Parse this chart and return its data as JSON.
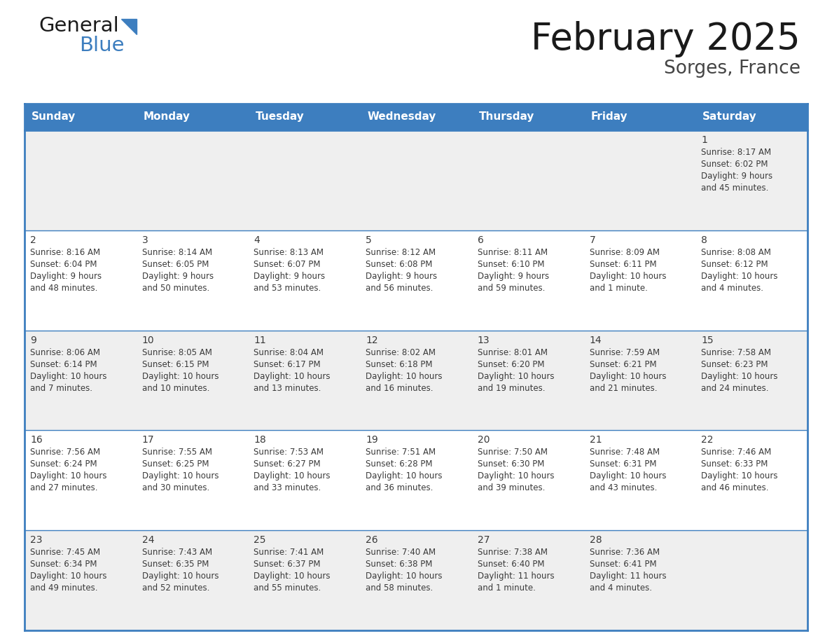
{
  "title": "February 2025",
  "subtitle": "Sorges, France",
  "header_bg": "#3D7EBF",
  "header_text_color": "#FFFFFF",
  "border_color": "#3D7EBF",
  "day_headers": [
    "Sunday",
    "Monday",
    "Tuesday",
    "Wednesday",
    "Thursday",
    "Friday",
    "Saturday"
  ],
  "row0_bg": "#EFEFEF",
  "row1_bg": "#FFFFFF",
  "days": [
    {
      "day": 1,
      "col": 6,
      "row": 0,
      "sunrise": "8:17 AM",
      "sunset": "6:02 PM",
      "daylight_line1": "Daylight: 9 hours",
      "daylight_line2": "and 45 minutes."
    },
    {
      "day": 2,
      "col": 0,
      "row": 1,
      "sunrise": "8:16 AM",
      "sunset": "6:04 PM",
      "daylight_line1": "Daylight: 9 hours",
      "daylight_line2": "and 48 minutes."
    },
    {
      "day": 3,
      "col": 1,
      "row": 1,
      "sunrise": "8:14 AM",
      "sunset": "6:05 PM",
      "daylight_line1": "Daylight: 9 hours",
      "daylight_line2": "and 50 minutes."
    },
    {
      "day": 4,
      "col": 2,
      "row": 1,
      "sunrise": "8:13 AM",
      "sunset": "6:07 PM",
      "daylight_line1": "Daylight: 9 hours",
      "daylight_line2": "and 53 minutes."
    },
    {
      "day": 5,
      "col": 3,
      "row": 1,
      "sunrise": "8:12 AM",
      "sunset": "6:08 PM",
      "daylight_line1": "Daylight: 9 hours",
      "daylight_line2": "and 56 minutes."
    },
    {
      "day": 6,
      "col": 4,
      "row": 1,
      "sunrise": "8:11 AM",
      "sunset": "6:10 PM",
      "daylight_line1": "Daylight: 9 hours",
      "daylight_line2": "and 59 minutes."
    },
    {
      "day": 7,
      "col": 5,
      "row": 1,
      "sunrise": "8:09 AM",
      "sunset": "6:11 PM",
      "daylight_line1": "Daylight: 10 hours",
      "daylight_line2": "and 1 minute."
    },
    {
      "day": 8,
      "col": 6,
      "row": 1,
      "sunrise": "8:08 AM",
      "sunset": "6:12 PM",
      "daylight_line1": "Daylight: 10 hours",
      "daylight_line2": "and 4 minutes."
    },
    {
      "day": 9,
      "col": 0,
      "row": 2,
      "sunrise": "8:06 AM",
      "sunset": "6:14 PM",
      "daylight_line1": "Daylight: 10 hours",
      "daylight_line2": "and 7 minutes."
    },
    {
      "day": 10,
      "col": 1,
      "row": 2,
      "sunrise": "8:05 AM",
      "sunset": "6:15 PM",
      "daylight_line1": "Daylight: 10 hours",
      "daylight_line2": "and 10 minutes."
    },
    {
      "day": 11,
      "col": 2,
      "row": 2,
      "sunrise": "8:04 AM",
      "sunset": "6:17 PM",
      "daylight_line1": "Daylight: 10 hours",
      "daylight_line2": "and 13 minutes."
    },
    {
      "day": 12,
      "col": 3,
      "row": 2,
      "sunrise": "8:02 AM",
      "sunset": "6:18 PM",
      "daylight_line1": "Daylight: 10 hours",
      "daylight_line2": "and 16 minutes."
    },
    {
      "day": 13,
      "col": 4,
      "row": 2,
      "sunrise": "8:01 AM",
      "sunset": "6:20 PM",
      "daylight_line1": "Daylight: 10 hours",
      "daylight_line2": "and 19 minutes."
    },
    {
      "day": 14,
      "col": 5,
      "row": 2,
      "sunrise": "7:59 AM",
      "sunset": "6:21 PM",
      "daylight_line1": "Daylight: 10 hours",
      "daylight_line2": "and 21 minutes."
    },
    {
      "day": 15,
      "col": 6,
      "row": 2,
      "sunrise": "7:58 AM",
      "sunset": "6:23 PM",
      "daylight_line1": "Daylight: 10 hours",
      "daylight_line2": "and 24 minutes."
    },
    {
      "day": 16,
      "col": 0,
      "row": 3,
      "sunrise": "7:56 AM",
      "sunset": "6:24 PM",
      "daylight_line1": "Daylight: 10 hours",
      "daylight_line2": "and 27 minutes."
    },
    {
      "day": 17,
      "col": 1,
      "row": 3,
      "sunrise": "7:55 AM",
      "sunset": "6:25 PM",
      "daylight_line1": "Daylight: 10 hours",
      "daylight_line2": "and 30 minutes."
    },
    {
      "day": 18,
      "col": 2,
      "row": 3,
      "sunrise": "7:53 AM",
      "sunset": "6:27 PM",
      "daylight_line1": "Daylight: 10 hours",
      "daylight_line2": "and 33 minutes."
    },
    {
      "day": 19,
      "col": 3,
      "row": 3,
      "sunrise": "7:51 AM",
      "sunset": "6:28 PM",
      "daylight_line1": "Daylight: 10 hours",
      "daylight_line2": "and 36 minutes."
    },
    {
      "day": 20,
      "col": 4,
      "row": 3,
      "sunrise": "7:50 AM",
      "sunset": "6:30 PM",
      "daylight_line1": "Daylight: 10 hours",
      "daylight_line2": "and 39 minutes."
    },
    {
      "day": 21,
      "col": 5,
      "row": 3,
      "sunrise": "7:48 AM",
      "sunset": "6:31 PM",
      "daylight_line1": "Daylight: 10 hours",
      "daylight_line2": "and 43 minutes."
    },
    {
      "day": 22,
      "col": 6,
      "row": 3,
      "sunrise": "7:46 AM",
      "sunset": "6:33 PM",
      "daylight_line1": "Daylight: 10 hours",
      "daylight_line2": "and 46 minutes."
    },
    {
      "day": 23,
      "col": 0,
      "row": 4,
      "sunrise": "7:45 AM",
      "sunset": "6:34 PM",
      "daylight_line1": "Daylight: 10 hours",
      "daylight_line2": "and 49 minutes."
    },
    {
      "day": 24,
      "col": 1,
      "row": 4,
      "sunrise": "7:43 AM",
      "sunset": "6:35 PM",
      "daylight_line1": "Daylight: 10 hours",
      "daylight_line2": "and 52 minutes."
    },
    {
      "day": 25,
      "col": 2,
      "row": 4,
      "sunrise": "7:41 AM",
      "sunset": "6:37 PM",
      "daylight_line1": "Daylight: 10 hours",
      "daylight_line2": "and 55 minutes."
    },
    {
      "day": 26,
      "col": 3,
      "row": 4,
      "sunrise": "7:40 AM",
      "sunset": "6:38 PM",
      "daylight_line1": "Daylight: 10 hours",
      "daylight_line2": "and 58 minutes."
    },
    {
      "day": 27,
      "col": 4,
      "row": 4,
      "sunrise": "7:38 AM",
      "sunset": "6:40 PM",
      "daylight_line1": "Daylight: 11 hours",
      "daylight_line2": "and 1 minute."
    },
    {
      "day": 28,
      "col": 5,
      "row": 4,
      "sunrise": "7:36 AM",
      "sunset": "6:41 PM",
      "daylight_line1": "Daylight: 11 hours",
      "daylight_line2": "and 4 minutes."
    }
  ],
  "num_rows": 5,
  "num_cols": 7,
  "figwidth": 11.88,
  "figheight": 9.18,
  "dpi": 100
}
